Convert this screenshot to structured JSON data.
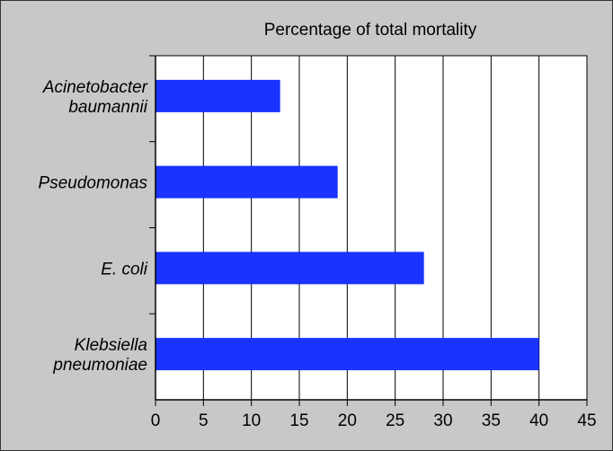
{
  "chart_data": {
    "type": "bar",
    "orientation": "horizontal",
    "title": "Percentage of total mortality",
    "categories": [
      [
        "Acinetobacter",
        "baumannii"
      ],
      [
        "Pseudomonas"
      ],
      [
        "E. coli"
      ],
      [
        "Klebsiella",
        "pneumoniae"
      ]
    ],
    "values": [
      13,
      19,
      28,
      40
    ],
    "xlim": [
      0,
      45
    ],
    "xticks": [
      0,
      5,
      10,
      15,
      20,
      25,
      30,
      35,
      40,
      45
    ],
    "grid": "vertical",
    "bar_color": "#1a33ff",
    "xlabel": "",
    "ylabel": ""
  }
}
